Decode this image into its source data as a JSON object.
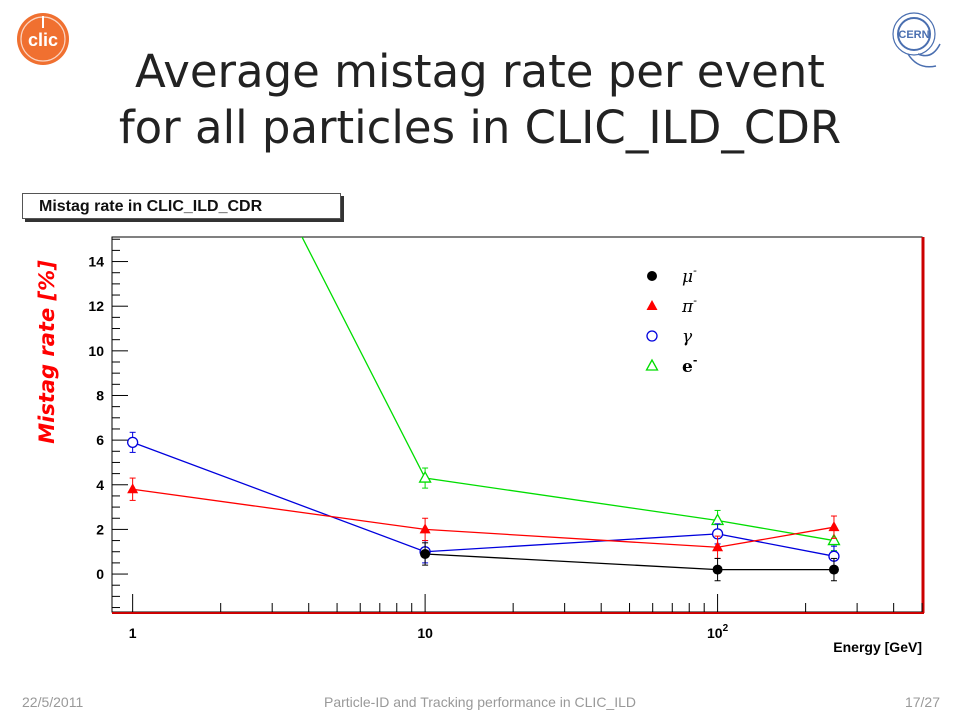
{
  "slide": {
    "title_line1": "Average mistag rate per event",
    "title_line2": "for all particles in CLIC_ILD_CDR",
    "logo_left": "clic-logo",
    "logo_right": "cern-logo",
    "logo_right_text": "CERN"
  },
  "footer": {
    "date": "22/5/2011",
    "center": "Particle-ID and Tracking performance in CLIC_ILD",
    "page": "17/27"
  },
  "colors": {
    "mu": "#000000",
    "pi": "#ff0000",
    "gamma": "#0000dd",
    "e": "#00dd00",
    "frame_right": "#cc0000"
  },
  "chart_data": {
    "type": "scatter",
    "title": "Mistag rate in CLIC_ILD_CDR",
    "xlabel": "Energy [GeV]",
    "ylabel": "Mistag rate [%]",
    "xscale": "log",
    "xlim": [
      0.85,
      500
    ],
    "ylim": [
      -1.7,
      15.1
    ],
    "xticks": [
      {
        "value": 1,
        "label": "1"
      },
      {
        "value": 10,
        "label": "10"
      },
      {
        "value": 100,
        "label": "10",
        "sup": "2"
      }
    ],
    "yticks": [
      0,
      2,
      4,
      6,
      8,
      10,
      12,
      14
    ],
    "legend_position": "top-right",
    "series": [
      {
        "key": "mu",
        "name": "μ",
        "sup": "-",
        "marker": "filled-circle",
        "points": [
          [
            10,
            0.9,
            0.5
          ],
          [
            100,
            0.2,
            0.5
          ],
          [
            250,
            0.2,
            0.5
          ]
        ]
      },
      {
        "key": "pi",
        "name": "π",
        "sup": "-",
        "marker": "filled-triangle",
        "points": [
          [
            1,
            3.8,
            0.5
          ],
          [
            10,
            2.0,
            0.5
          ],
          [
            100,
            1.2,
            0.5
          ],
          [
            250,
            2.1,
            0.5
          ]
        ]
      },
      {
        "key": "gamma",
        "name": "γ",
        "sup": "",
        "marker": "open-circle",
        "points": [
          [
            1,
            5.9,
            0.45
          ],
          [
            10,
            1.0,
            0.5
          ],
          [
            100,
            1.8,
            0.45
          ],
          [
            250,
            0.8,
            0.45
          ]
        ]
      },
      {
        "key": "e",
        "name": "e",
        "sup": "-",
        "marker": "open-triangle",
        "points": [
          [
            3.5,
            16.0,
            0.5
          ],
          [
            10,
            4.3,
            0.45
          ],
          [
            100,
            2.4,
            0.45
          ],
          [
            250,
            1.5,
            0.45
          ]
        ]
      }
    ]
  }
}
